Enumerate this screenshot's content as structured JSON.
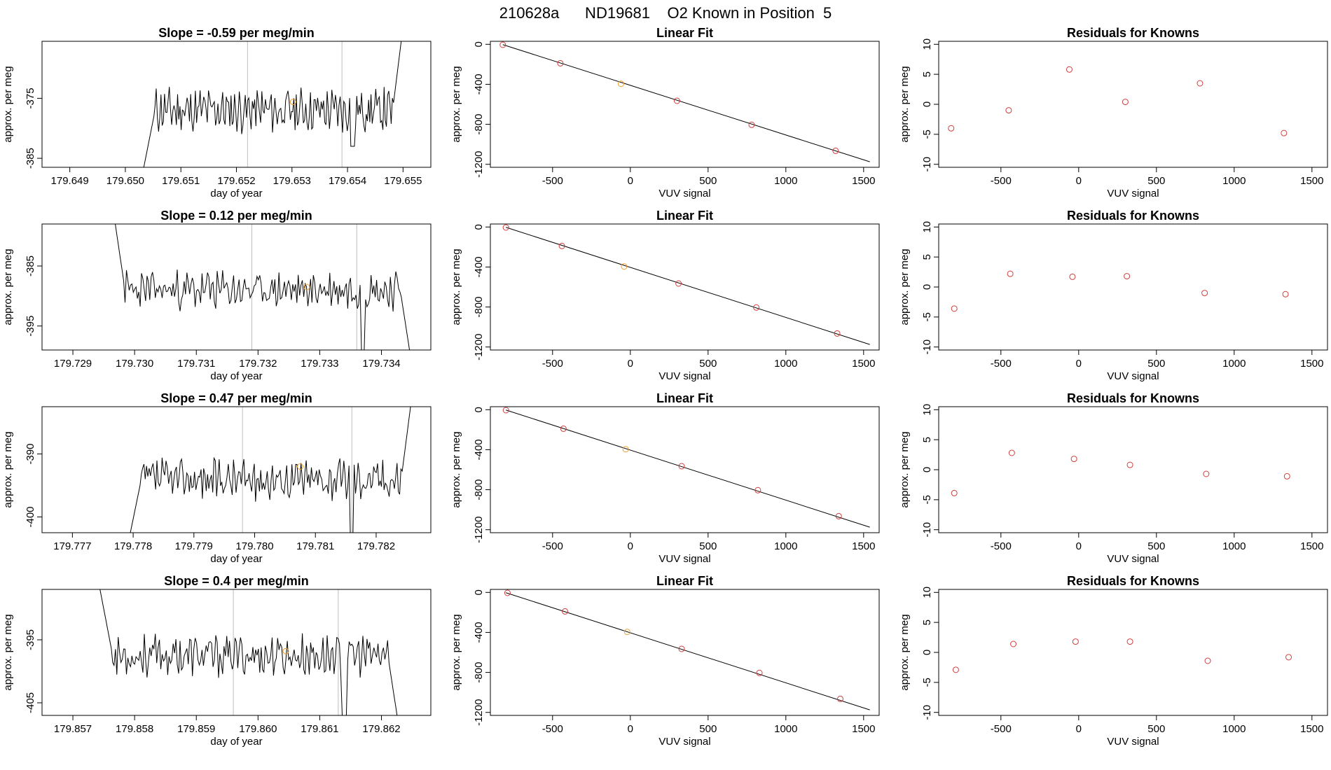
{
  "page_title": "210628a      ND19681    O2 Known in Position  5",
  "colors": {
    "line": "#000000",
    "grid": "#bebebe",
    "point_red": "#d23c3c",
    "point_orange": "#f0a030"
  },
  "chart_data": [
    {
      "type": "line",
      "row": 1,
      "title": "Slope =  -0.59  per meg/min",
      "xlabel": "day of year",
      "ylabel": "approx. per meg",
      "xlim": [
        179.6485,
        179.6555
      ],
      "ylim": [
        -386.5,
        -365.5
      ],
      "xticks": [
        179.649,
        179.65,
        179.651,
        179.652,
        179.653,
        179.654,
        179.655
      ],
      "xtick_labels": [
        "179.649",
        "179.650",
        "179.651",
        "179.652",
        "179.653",
        "179.654",
        "179.655"
      ],
      "yticks": [
        -385,
        -375
      ],
      "ytick_labels": [
        "-385",
        "-375"
      ],
      "vlines": [
        179.6522,
        179.6539
      ],
      "marker": {
        "x": 179.65302,
        "y": -375.6
      },
      "series": [
        {
          "x_start": 179.6503,
          "x_end": 179.655,
          "y_start": -388.0,
          "y_end": -363.0,
          "mean": -377.0,
          "amp": 3.0,
          "seed": 11,
          "dips": [
            [
              179.6541,
              -383.0
            ]
          ]
        }
      ]
    },
    {
      "type": "scatter",
      "row": 1,
      "title": "Linear Fit",
      "xlabel": "VUV signal",
      "ylabel": "approx. per meg",
      "xlim": [
        -900,
        1600
      ],
      "ylim": [
        -1230,
        30
      ],
      "xticks": [
        -500,
        0,
        500,
        1000,
        1500
      ],
      "xtick_labels": [
        "-500",
        "0",
        "500",
        "1000",
        "1500"
      ],
      "yticks": [
        0,
        -400,
        -800,
        -1200
      ],
      "ytick_labels": [
        "0",
        "-400",
        "-800",
        "-1200"
      ],
      "fit": {
        "x": [
          -820,
          1540
        ],
        "y": [
          -3,
          -1175
        ]
      },
      "points": [
        {
          "x": -820,
          "y": -5,
          "color": "red"
        },
        {
          "x": -450,
          "y": -190,
          "color": "red"
        },
        {
          "x": -60,
          "y": -395,
          "color": "orange"
        },
        {
          "x": 300,
          "y": -565,
          "color": "red"
        },
        {
          "x": 780,
          "y": -805,
          "color": "red"
        },
        {
          "x": 1320,
          "y": -1065,
          "color": "red"
        }
      ]
    },
    {
      "type": "scatter",
      "row": 1,
      "title": "Residuals for Knowns",
      "xlabel": "VUV signal",
      "ylabel": "approx. per meg",
      "xlim": [
        -900,
        1600
      ],
      "ylim": [
        -10.5,
        10.5
      ],
      "xticks": [
        -500,
        0,
        500,
        1000,
        1500
      ],
      "xtick_labels": [
        "-500",
        "0",
        "500",
        "1000",
        "1500"
      ],
      "yticks": [
        -10,
        -5,
        0,
        5,
        10
      ],
      "ytick_labels": [
        "-10",
        "-5",
        "0",
        "5",
        "10"
      ],
      "points": [
        {
          "x": -820,
          "y": -4.0,
          "color": "red"
        },
        {
          "x": -450,
          "y": -1.0,
          "color": "red"
        },
        {
          "x": -60,
          "y": 5.8,
          "color": "red"
        },
        {
          "x": 300,
          "y": 0.4,
          "color": "red"
        },
        {
          "x": 780,
          "y": 3.5,
          "color": "red"
        },
        {
          "x": 1320,
          "y": -4.8,
          "color": "red"
        }
      ]
    },
    {
      "type": "line",
      "row": 2,
      "title": "Slope =  0.12  per meg/min",
      "xlabel": "day of year",
      "ylabel": "approx. per meg",
      "xlim": [
        179.7285,
        179.7348
      ],
      "ylim": [
        -399,
        -378
      ],
      "xticks": [
        179.729,
        179.73,
        179.731,
        179.732,
        179.733,
        179.734
      ],
      "xtick_labels": [
        "179.729",
        "179.730",
        "179.731",
        "179.732",
        "179.733",
        "179.734"
      ],
      "yticks": [
        -395,
        -385
      ],
      "ytick_labels": [
        "-395",
        "-385"
      ],
      "vlines": [
        179.7319,
        179.7336
      ],
      "marker": {
        "x": 179.73279,
        "y": -388.5
      },
      "series": [
        {
          "x_start": 179.7296,
          "x_end": 179.7345,
          "y_start": -372.0,
          "y_end": -402.0,
          "mean": -389.0,
          "amp": 2.6,
          "seed": 23,
          "dips": [
            [
              179.7337,
              -399.0
            ]
          ]
        }
      ]
    },
    {
      "type": "scatter",
      "row": 2,
      "title": "Linear Fit",
      "xlabel": "VUV signal",
      "ylabel": "approx. per meg",
      "xlim": [
        -900,
        1600
      ],
      "ylim": [
        -1230,
        30
      ],
      "xticks": [
        -500,
        0,
        500,
        1000,
        1500
      ],
      "xtick_labels": [
        "-500",
        "0",
        "500",
        "1000",
        "1500"
      ],
      "yticks": [
        0,
        -400,
        -800,
        -1200
      ],
      "ytick_labels": [
        "0",
        "-400",
        "-800",
        "-1200"
      ],
      "fit": {
        "x": [
          -800,
          1540
        ],
        "y": [
          -3,
          -1175
        ]
      },
      "points": [
        {
          "x": -800,
          "y": -5,
          "color": "red"
        },
        {
          "x": -440,
          "y": -190,
          "color": "red"
        },
        {
          "x": -40,
          "y": -395,
          "color": "orange"
        },
        {
          "x": 310,
          "y": -565,
          "color": "red"
        },
        {
          "x": 810,
          "y": -805,
          "color": "red"
        },
        {
          "x": 1330,
          "y": -1065,
          "color": "red"
        }
      ]
    },
    {
      "type": "scatter",
      "row": 2,
      "title": "Residuals for Knowns",
      "xlabel": "VUV signal",
      "ylabel": "approx. per meg",
      "xlim": [
        -900,
        1600
      ],
      "ylim": [
        -10.5,
        10.5
      ],
      "xticks": [
        -500,
        0,
        500,
        1000,
        1500
      ],
      "xtick_labels": [
        "-500",
        "0",
        "500",
        "1000",
        "1500"
      ],
      "yticks": [
        -10,
        -5,
        0,
        5,
        10
      ],
      "ytick_labels": [
        "-10",
        "-5",
        "0",
        "5",
        "10"
      ],
      "points": [
        {
          "x": -800,
          "y": -3.6,
          "color": "red"
        },
        {
          "x": -440,
          "y": 2.2,
          "color": "red"
        },
        {
          "x": -40,
          "y": 1.7,
          "color": "red"
        },
        {
          "x": 310,
          "y": 1.8,
          "color": "red"
        },
        {
          "x": 810,
          "y": -1.0,
          "color": "red"
        },
        {
          "x": 1330,
          "y": -1.2,
          "color": "red"
        }
      ]
    },
    {
      "type": "line",
      "row": 3,
      "title": "Slope =  0.47  per meg/min",
      "xlabel": "day of year",
      "ylabel": "approx. per meg",
      "xlim": [
        179.7765,
        179.7829
      ],
      "ylim": [
        -402.5,
        -382.5
      ],
      "xticks": [
        179.777,
        179.778,
        179.779,
        179.78,
        179.781,
        179.782
      ],
      "xtick_labels": [
        "179.777",
        "179.778",
        "179.779",
        "179.780",
        "179.781",
        "179.782"
      ],
      "yticks": [
        -400,
        -390
      ],
      "ytick_labels": [
        "-400",
        "-390"
      ],
      "vlines": [
        179.7798,
        179.7816
      ],
      "marker": {
        "x": 179.78075,
        "y": -392.0
      },
      "series": [
        {
          "x_start": 179.7779,
          "x_end": 179.7826,
          "y_start": -405.0,
          "y_end": -380.0,
          "mean": -394.0,
          "amp": 2.6,
          "seed": 37,
          "dips": [
            [
              179.7816,
              -403.0
            ]
          ]
        }
      ]
    },
    {
      "type": "scatter",
      "row": 3,
      "title": "Linear Fit",
      "xlabel": "VUV signal",
      "ylabel": "approx. per meg",
      "xlim": [
        -900,
        1600
      ],
      "ylim": [
        -1230,
        30
      ],
      "xticks": [
        -500,
        0,
        500,
        1000,
        1500
      ],
      "xtick_labels": [
        "-500",
        "0",
        "500",
        "1000",
        "1500"
      ],
      "yticks": [
        0,
        -400,
        -800,
        -1200
      ],
      "ytick_labels": [
        "0",
        "-400",
        "-800",
        "-1200"
      ],
      "fit": {
        "x": [
          -800,
          1540
        ],
        "y": [
          -3,
          -1175
        ]
      },
      "points": [
        {
          "x": -800,
          "y": -5,
          "color": "red"
        },
        {
          "x": -430,
          "y": -190,
          "color": "red"
        },
        {
          "x": -30,
          "y": -395,
          "color": "orange"
        },
        {
          "x": 330,
          "y": -565,
          "color": "red"
        },
        {
          "x": 820,
          "y": -805,
          "color": "red"
        },
        {
          "x": 1340,
          "y": -1065,
          "color": "red"
        }
      ]
    },
    {
      "type": "scatter",
      "row": 3,
      "title": "Residuals for Knowns",
      "xlabel": "VUV signal",
      "ylabel": "approx. per meg",
      "xlim": [
        -900,
        1600
      ],
      "ylim": [
        -10.5,
        10.5
      ],
      "xticks": [
        -500,
        0,
        500,
        1000,
        1500
      ],
      "xtick_labels": [
        "-500",
        "0",
        "500",
        "1000",
        "1500"
      ],
      "yticks": [
        -10,
        -5,
        0,
        5,
        10
      ],
      "ytick_labels": [
        "-10",
        "-5",
        "0",
        "5",
        "10"
      ],
      "points": [
        {
          "x": -800,
          "y": -3.9,
          "color": "red"
        },
        {
          "x": -430,
          "y": 2.8,
          "color": "red"
        },
        {
          "x": -30,
          "y": 1.8,
          "color": "red"
        },
        {
          "x": 330,
          "y": 0.8,
          "color": "red"
        },
        {
          "x": 820,
          "y": -0.7,
          "color": "red"
        },
        {
          "x": 1340,
          "y": -1.1,
          "color": "red"
        }
      ]
    },
    {
      "type": "line",
      "row": 4,
      "title": "Slope =  0.4  per meg/min",
      "xlabel": "day of year",
      "ylabel": "approx. per meg",
      "xlim": [
        179.8565,
        179.8628
      ],
      "ylim": [
        -407.0,
        -387.0
      ],
      "xticks": [
        179.857,
        179.858,
        179.859,
        179.86,
        179.861,
        179.862
      ],
      "xtick_labels": [
        "179.857",
        "179.858",
        "179.859",
        "179.860",
        "179.861",
        "179.862"
      ],
      "yticks": [
        -405,
        -395
      ],
      "ytick_labels": [
        "-405",
        "-395"
      ],
      "vlines": [
        179.8596,
        179.8613
      ],
      "marker": {
        "x": 179.86045,
        "y": -396.8
      },
      "series": [
        {
          "x_start": 179.8574,
          "x_end": 179.8623,
          "y_start": -385.0,
          "y_end": -410.0,
          "mean": -397.5,
          "amp": 2.7,
          "seed": 53,
          "dips": [
            [
              179.8614,
              -407.0
            ]
          ]
        }
      ]
    },
    {
      "type": "scatter",
      "row": 4,
      "title": "Linear Fit",
      "xlabel": "VUV signal",
      "ylabel": "approx. per meg",
      "xlim": [
        -900,
        1600
      ],
      "ylim": [
        -1230,
        30
      ],
      "xticks": [
        -500,
        0,
        500,
        1000,
        1500
      ],
      "xtick_labels": [
        "-500",
        "0",
        "500",
        "1000",
        "1500"
      ],
      "yticks": [
        0,
        -400,
        -800,
        -1200
      ],
      "ytick_labels": [
        "0",
        "-400",
        "-800",
        "-1200"
      ],
      "fit": {
        "x": [
          -800,
          1540
        ],
        "y": [
          -3,
          -1175
        ]
      },
      "points": [
        {
          "x": -790,
          "y": -5,
          "color": "red"
        },
        {
          "x": -420,
          "y": -190,
          "color": "red"
        },
        {
          "x": -20,
          "y": -395,
          "color": "orange"
        },
        {
          "x": 330,
          "y": -565,
          "color": "red"
        },
        {
          "x": 830,
          "y": -805,
          "color": "red"
        },
        {
          "x": 1350,
          "y": -1065,
          "color": "red"
        }
      ]
    },
    {
      "type": "scatter",
      "row": 4,
      "title": "Residuals for Knowns",
      "xlabel": "VUV signal",
      "ylabel": "approx. per meg",
      "xlim": [
        -900,
        1600
      ],
      "ylim": [
        -10.5,
        10.5
      ],
      "xticks": [
        -500,
        0,
        500,
        1000,
        1500
      ],
      "xtick_labels": [
        "-500",
        "0",
        "500",
        "1000",
        "1500"
      ],
      "yticks": [
        -10,
        -5,
        0,
        5,
        10
      ],
      "ytick_labels": [
        "-10",
        "-5",
        "0",
        "5",
        "10"
      ],
      "points": [
        {
          "x": -790,
          "y": -2.9,
          "color": "red"
        },
        {
          "x": -420,
          "y": 1.4,
          "color": "red"
        },
        {
          "x": -20,
          "y": 1.8,
          "color": "red"
        },
        {
          "x": 330,
          "y": 1.8,
          "color": "red"
        },
        {
          "x": 830,
          "y": -1.4,
          "color": "red"
        },
        {
          "x": 1350,
          "y": -0.8,
          "color": "red"
        }
      ]
    }
  ]
}
